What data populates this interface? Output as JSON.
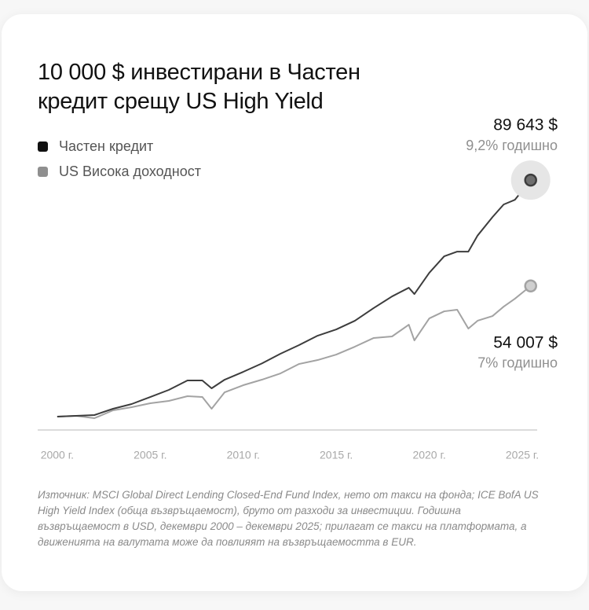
{
  "chart_data": {
    "type": "line",
    "title": "10 000 $ инвестирани в Частен кредит срещу US High Yield",
    "x": [
      2000,
      2001,
      2002,
      2003,
      2004,
      2005,
      2006,
      2007,
      2007.8,
      2008.3,
      2009,
      2010,
      2011,
      2012,
      2013,
      2014,
      2015,
      2016,
      2017,
      2018,
      2018.9,
      2019.2,
      2020,
      2020.8,
      2021.5,
      2022.1,
      2022.6,
      2023.4,
      2024,
      2024.6,
      2025.45
    ],
    "series": [
      {
        "name": "Частен кредит",
        "color": "#3d3d3d",
        "legend_color": "#111111",
        "values": [
          10000,
          10265,
          10529,
          12646,
          14234,
          16615,
          19000,
          22170,
          22170,
          19526,
          22436,
          25082,
          27900,
          31168,
          34079,
          37254,
          39371,
          42281,
          46515,
          50484,
          53394,
          51277,
          58420,
          63977,
          65565,
          65565,
          71000,
          77207,
          81440,
          83000,
          89643
        ],
        "end_value_label": "89 643 $",
        "end_note": "9,2% годишно"
      },
      {
        "name": "US Висока доходност",
        "color": "#a3a3a3",
        "legend_color": "#8f8f8f",
        "values": [
          10000,
          10265,
          9471,
          12117,
          13175,
          14498,
          15292,
          16880,
          16615,
          12646,
          18200,
          20584,
          22436,
          24553,
          27728,
          29051,
          30903,
          33550,
          36460,
          37000,
          40960,
          35667,
          43076,
          45456,
          46000,
          39636,
          42300,
          43870,
          47044,
          49690,
          54007
        ],
        "end_value_label": "54 007 $",
        "end_note": "7% годишно"
      }
    ],
    "xlim": [
      1998.95,
      2025.8
    ],
    "xticks": [
      {
        "value": 2000,
        "label": "2000 г."
      },
      {
        "value": 2005,
        "label": "2005 г."
      },
      {
        "value": 2010,
        "label": "2010 г."
      },
      {
        "value": 2015,
        "label": "2015 г."
      },
      {
        "value": 2020,
        "label": "2020 г."
      },
      {
        "value": 2025,
        "label": "2025 г."
      }
    ],
    "ylim": [
      5500,
      100000
    ],
    "grid": false,
    "source": "Източник: MSCI Global Direct Lending Closed-End Fund Index, нето от такси на фонда; ICE BofA US High Yield Index (обща възвръщаемост), бруто от разходи за инвестиции. Годишна възвръщаемост в USD, декември 2000 – декември 2025; прилагат се такси на платформата, а движенията на валутата може да повлияят на възвръщаемостта в EUR."
  }
}
